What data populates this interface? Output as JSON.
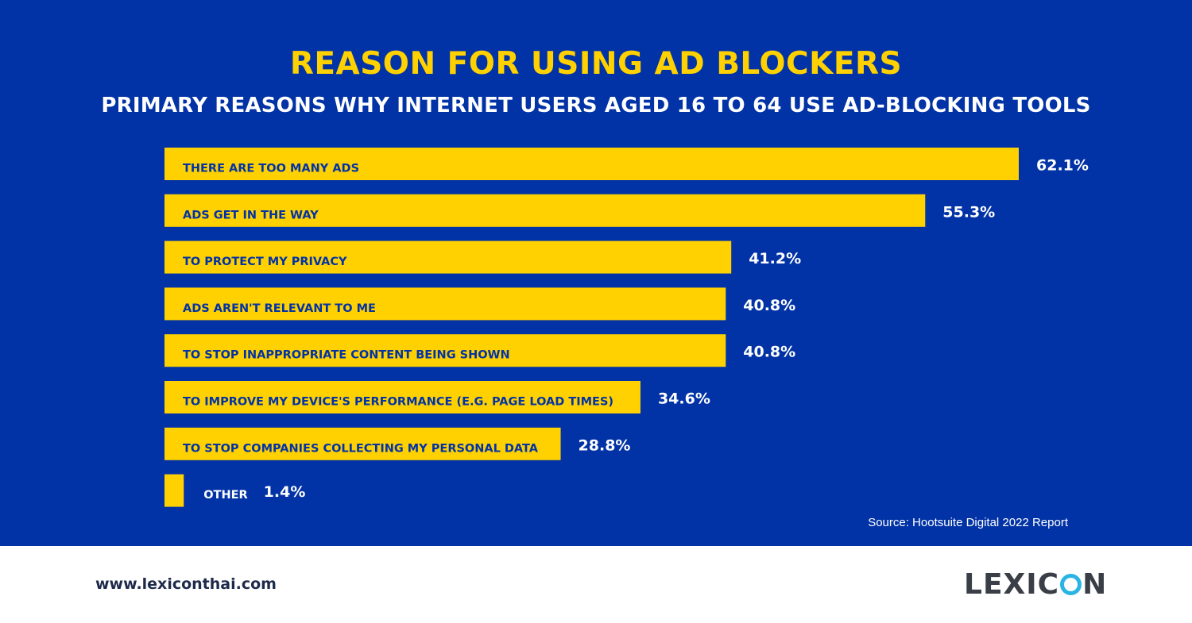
{
  "title": "REASON FOR USING AD BLOCKERS",
  "subtitle": "PRIMARY REASONS WHY INTERNET USERS AGED 16 TO 64 USE AD-BLOCKING TOOLS",
  "source": "Source: Hootsuite Digital 2022 Report",
  "footer": {
    "url": "www.lexiconthai.com",
    "logo_text": "LEXICON"
  },
  "colors": {
    "background": "#0233a6",
    "bar": "#ffd100",
    "bar_label": "#0233a6",
    "value_label": "#ffffff",
    "logo_accent": "#2bb4e3"
  },
  "chart_data": {
    "type": "bar",
    "orientation": "horizontal",
    "categories": [
      "THERE ARE TOO MANY ADS",
      "ADS GET IN THE WAY",
      "TO PROTECT MY PRIVACY",
      "ADS AREN'T RELEVANT TO ME",
      "TO STOP INAPPROPRIATE CONTENT BEING SHOWN",
      "TO IMPROVE MY DEVICE'S PERFORMANCE (E.G. PAGE LOAD TIMES)",
      "TO STOP COMPANIES COLLECTING MY PERSONAL DATA",
      "OTHER"
    ],
    "values": [
      62.1,
      55.3,
      41.2,
      40.8,
      40.8,
      34.6,
      28.8,
      1.4
    ],
    "value_labels": [
      "62.1%",
      "55.3%",
      "41.2%",
      "40.8%",
      "40.8%",
      "34.6%",
      "28.8%",
      "1.4%"
    ],
    "title": "REASON FOR USING AD BLOCKERS",
    "xlabel": "",
    "ylabel": "",
    "xlim": [
      0,
      62.1
    ],
    "grid": false,
    "legend": "none"
  }
}
